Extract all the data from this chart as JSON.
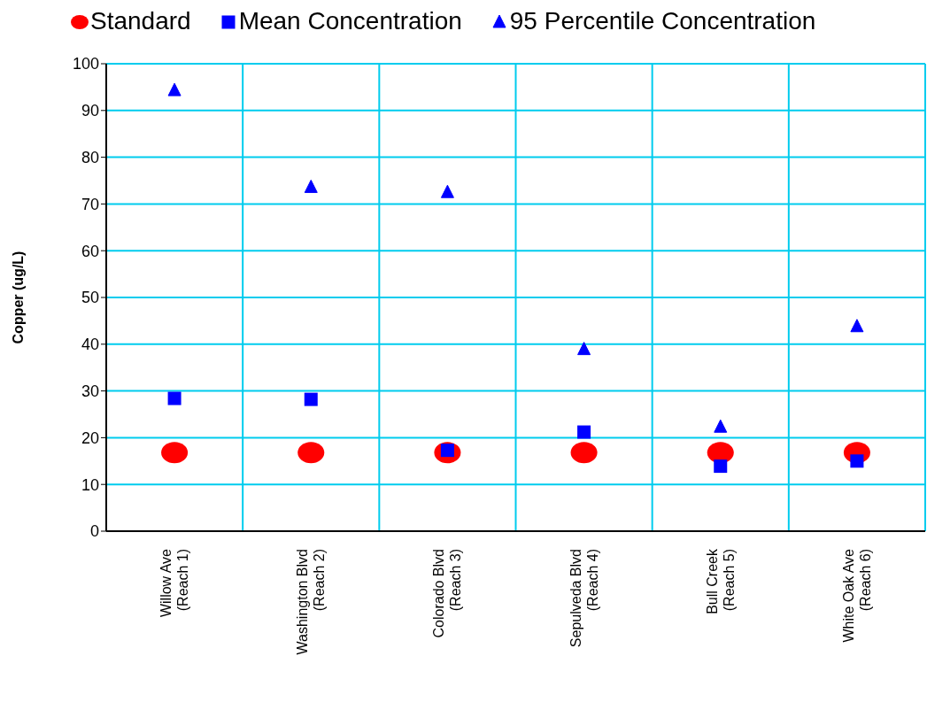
{
  "chart_data": {
    "type": "scatter",
    "ylabel": "Copper (ug/L)",
    "categories": [
      "Willow Ave\n(Reach 1)",
      "Washington Blvd\n(Reach 2)",
      "Colorado Blvd\n(Reach 3)",
      "Sepulveda Blvd\n(Reach 4)",
      "Bull Creek\n(Reach 5)",
      "White Oak Ave\n(Reach 6)"
    ],
    "series": [
      {
        "name": "Standard",
        "color": "#ff0000",
        "marker": "circle",
        "values": [
          16.8,
          16.8,
          16.8,
          16.8,
          16.8,
          16.8
        ]
      },
      {
        "name": "Mean Concentration",
        "color": "#0000ff",
        "marker": "square",
        "values": [
          28.4,
          28.2,
          17.3,
          21.2,
          13.9,
          15.0
        ]
      },
      {
        "name": "95 Percentile Concentration",
        "color": "#0000ff",
        "marker": "triangle",
        "values": [
          94.3,
          73.6,
          72.5,
          38.9,
          22.3,
          43.8
        ]
      }
    ],
    "ylim": [
      0,
      100
    ],
    "yticks": [
      0,
      10,
      20,
      30,
      40,
      50,
      60,
      70,
      80,
      90,
      100
    ],
    "grid": true,
    "legend": "top"
  }
}
